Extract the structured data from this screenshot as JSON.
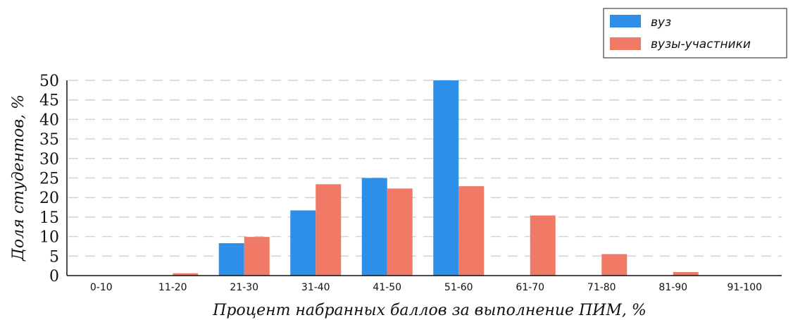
{
  "chart_data": {
    "type": "bar",
    "title": "",
    "xlabel": "Процент набранных баллов за выполнение ПИМ, %",
    "ylabel": "Доля студентов, %",
    "ylim": [
      0,
      50
    ],
    "yticks": [
      0,
      5,
      10,
      15,
      20,
      25,
      30,
      35,
      40,
      45,
      50
    ],
    "grid": true,
    "legend_position": "top-right",
    "categories": [
      "0-10",
      "11-20",
      "21-30",
      "31-40",
      "41-50",
      "51-60",
      "61-70",
      "71-80",
      "81-90",
      "91-100"
    ],
    "series": [
      {
        "name": "вуз",
        "color": "#2e8fe8",
        "values": [
          0,
          0,
          8.3,
          16.7,
          25.0,
          50.0,
          0,
          0,
          0,
          0
        ]
      },
      {
        "name": "вузы-участники",
        "color": "#f07a65",
        "values": [
          0,
          0.6,
          9.9,
          23.4,
          22.3,
          22.9,
          15.4,
          5.5,
          0.9,
          0
        ]
      }
    ]
  }
}
